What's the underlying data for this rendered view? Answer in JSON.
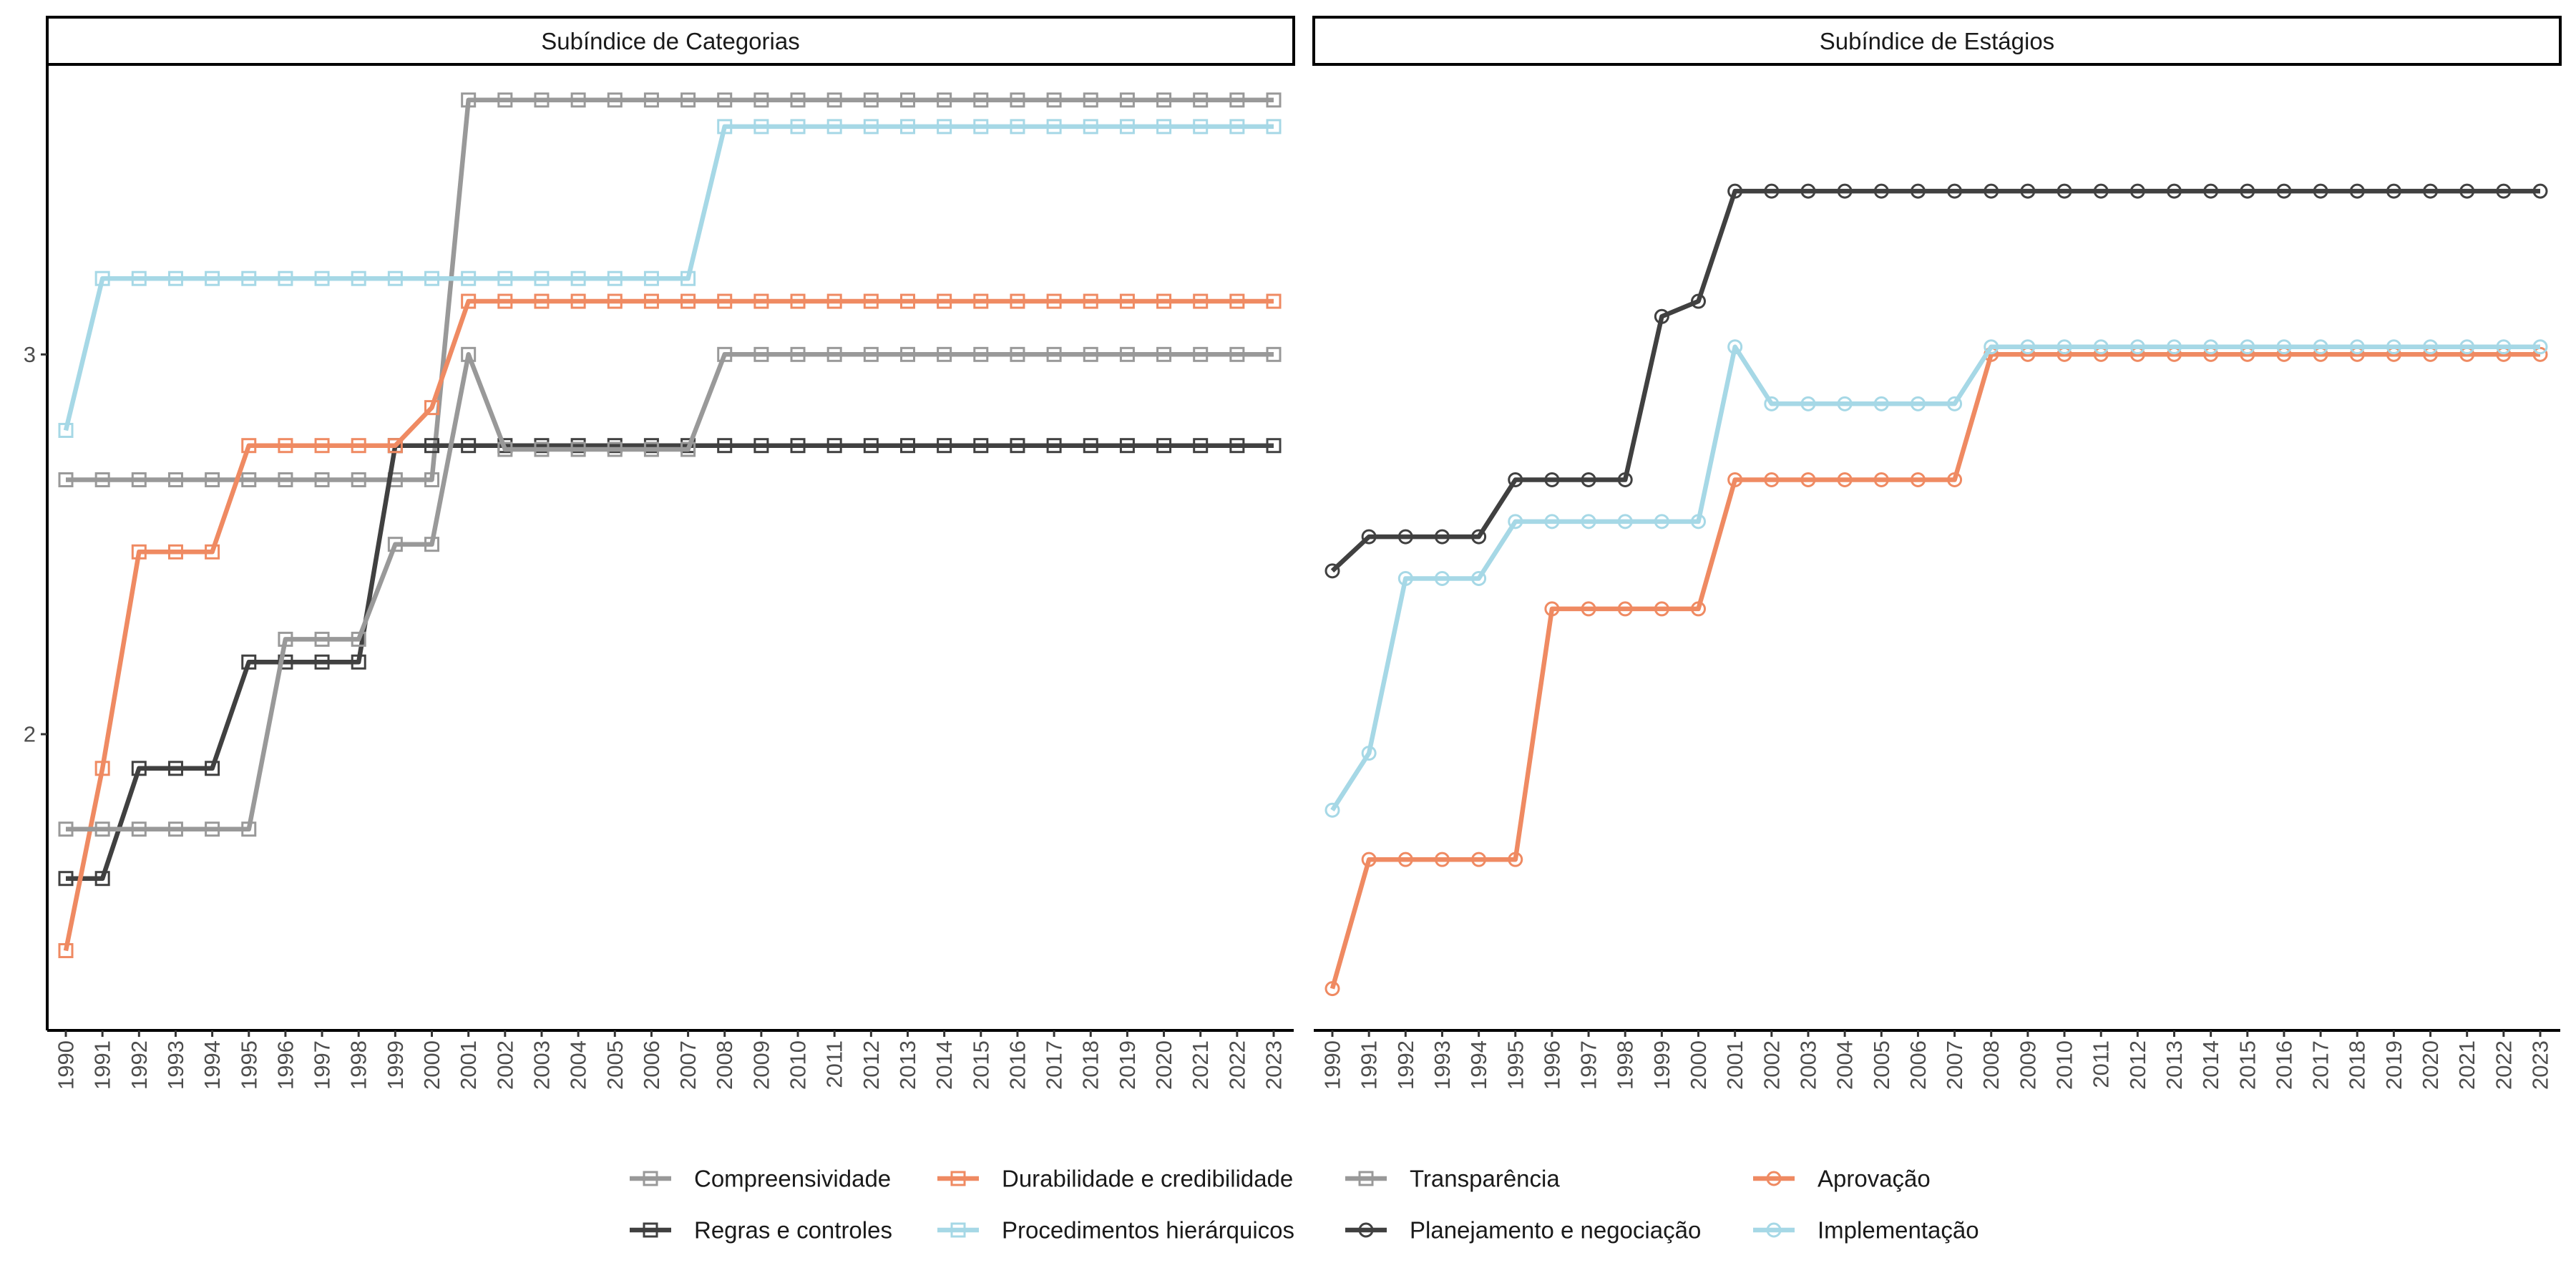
{
  "chart_data": [
    {
      "type": "line",
      "panel": "Subíndice de Categorias",
      "x": [
        1990,
        1991,
        1992,
        1993,
        1994,
        1995,
        1996,
        1997,
        1998,
        1999,
        2000,
        2001,
        2002,
        2003,
        2004,
        2005,
        2006,
        2007,
        2008,
        2009,
        2010,
        2011,
        2012,
        2013,
        2014,
        2015,
        2016,
        2017,
        2018,
        2019,
        2020,
        2021,
        2022,
        2023
      ],
      "yticks": [
        2,
        3
      ],
      "series": [
        {
          "name": "Compreensividade",
          "color": "#999999",
          "marker": "square",
          "values": [
            2.67,
            2.67,
            2.67,
            2.67,
            2.67,
            2.67,
            2.67,
            2.67,
            2.67,
            2.67,
            2.67,
            3.67,
            3.67,
            3.67,
            3.67,
            3.67,
            3.67,
            3.67,
            3.67,
            3.67,
            3.67,
            3.67,
            3.67,
            3.67,
            3.67,
            3.67,
            3.67,
            3.67,
            3.67,
            3.67,
            3.67,
            3.67,
            3.67,
            3.67
          ]
        },
        {
          "name": "Regras e controles",
          "color": "#404040",
          "marker": "square",
          "values": [
            1.62,
            1.62,
            1.91,
            1.91,
            1.91,
            2.19,
            2.19,
            2.19,
            2.19,
            2.76,
            2.76,
            2.76,
            2.76,
            2.76,
            2.76,
            2.76,
            2.76,
            2.76,
            2.76,
            2.76,
            2.76,
            2.76,
            2.76,
            2.76,
            2.76,
            2.76,
            2.76,
            2.76,
            2.76,
            2.76,
            2.76,
            2.76,
            2.76,
            2.76
          ]
        },
        {
          "name": "Durabilidade e credibilidade",
          "color": "#EF8A62",
          "marker": "square",
          "values": [
            1.43,
            1.91,
            2.48,
            2.48,
            2.48,
            2.76,
            2.76,
            2.76,
            2.76,
            2.76,
            2.86,
            3.14,
            3.14,
            3.14,
            3.14,
            3.14,
            3.14,
            3.14,
            3.14,
            3.14,
            3.14,
            3.14,
            3.14,
            3.14,
            3.14,
            3.14,
            3.14,
            3.14,
            3.14,
            3.14,
            3.14,
            3.14,
            3.14,
            3.14
          ]
        },
        {
          "name": "Procedimentos hierárquicos",
          "color": "#A6D8E6",
          "marker": "square",
          "values": [
            2.8,
            3.2,
            3.2,
            3.2,
            3.2,
            3.2,
            3.2,
            3.2,
            3.2,
            3.2,
            3.2,
            3.2,
            3.2,
            3.2,
            3.2,
            3.2,
            3.2,
            3.2,
            3.6,
            3.6,
            3.6,
            3.6,
            3.6,
            3.6,
            3.6,
            3.6,
            3.6,
            3.6,
            3.6,
            3.6,
            3.6,
            3.6,
            3.6,
            3.6
          ]
        },
        {
          "name": "Transparência",
          "color": "#999999",
          "marker": "square",
          "values": [
            1.75,
            1.75,
            1.75,
            1.75,
            1.75,
            1.75,
            2.25,
            2.25,
            2.25,
            2.5,
            2.5,
            3.0,
            2.75,
            2.75,
            2.75,
            2.75,
            2.75,
            2.75,
            3.0,
            3.0,
            3.0,
            3.0,
            3.0,
            3.0,
            3.0,
            3.0,
            3.0,
            3.0,
            3.0,
            3.0,
            3.0,
            3.0,
            3.0,
            3.0
          ]
        }
      ]
    },
    {
      "type": "line",
      "panel": "Subíndice de Estágios",
      "x": [
        1990,
        1991,
        1992,
        1993,
        1994,
        1995,
        1996,
        1997,
        1998,
        1999,
        2000,
        2001,
        2002,
        2003,
        2004,
        2005,
        2006,
        2007,
        2008,
        2009,
        2010,
        2011,
        2012,
        2013,
        2014,
        2015,
        2016,
        2017,
        2018,
        2019,
        2020,
        2021,
        2022,
        2023
      ],
      "yticks": [
        2,
        3
      ],
      "series": [
        {
          "name": "Planejamento e negociação",
          "color": "#404040",
          "marker": "circle",
          "values": [
            2.43,
            2.52,
            2.52,
            2.52,
            2.52,
            2.67,
            2.67,
            2.67,
            2.67,
            3.1,
            3.14,
            3.43,
            3.43,
            3.43,
            3.43,
            3.43,
            3.43,
            3.43,
            3.43,
            3.43,
            3.43,
            3.43,
            3.43,
            3.43,
            3.43,
            3.43,
            3.43,
            3.43,
            3.43,
            3.43,
            3.43,
            3.43,
            3.43,
            3.43
          ]
        },
        {
          "name": "Aprovação",
          "color": "#EF8A62",
          "marker": "circle",
          "values": [
            1.33,
            1.67,
            1.67,
            1.67,
            1.67,
            1.67,
            2.33,
            2.33,
            2.33,
            2.33,
            2.33,
            2.67,
            2.67,
            2.67,
            2.67,
            2.67,
            2.67,
            2.67,
            3.0,
            3.0,
            3.0,
            3.0,
            3.0,
            3.0,
            3.0,
            3.0,
            3.0,
            3.0,
            3.0,
            3.0,
            3.0,
            3.0,
            3.0,
            3.0
          ]
        },
        {
          "name": "Implementação",
          "color": "#A6D8E6",
          "marker": "circle",
          "values": [
            1.8,
            1.95,
            2.41,
            2.41,
            2.41,
            2.56,
            2.56,
            2.56,
            2.56,
            2.56,
            2.56,
            3.02,
            2.87,
            2.87,
            2.87,
            2.87,
            2.87,
            2.87,
            3.02,
            3.02,
            3.02,
            3.02,
            3.02,
            3.02,
            3.02,
            3.02,
            3.02,
            3.02,
            3.02,
            3.02,
            3.02,
            3.02,
            3.02,
            3.02
          ]
        }
      ]
    }
  ],
  "ylim": [
    1.22,
    3.76
  ],
  "legend": {
    "position": "bottom",
    "items": [
      {
        "label": "Compreensividade",
        "color": "#999999",
        "marker": "square"
      },
      {
        "label": "Durabilidade e credibilidade",
        "color": "#EF8A62",
        "marker": "square"
      },
      {
        "label": "Transparência",
        "color": "#999999",
        "marker": "square"
      },
      {
        "label": "Aprovação",
        "color": "#EF8A62",
        "marker": "circle"
      },
      {
        "label": "Regras e controles",
        "color": "#404040",
        "marker": "square"
      },
      {
        "label": "Procedimentos hierárquicos",
        "color": "#A6D8E6",
        "marker": "square"
      },
      {
        "label": "Planejamento e negociação",
        "color": "#404040",
        "marker": "circle"
      },
      {
        "label": "Implementação",
        "color": "#A6D8E6",
        "marker": "circle"
      }
    ]
  }
}
